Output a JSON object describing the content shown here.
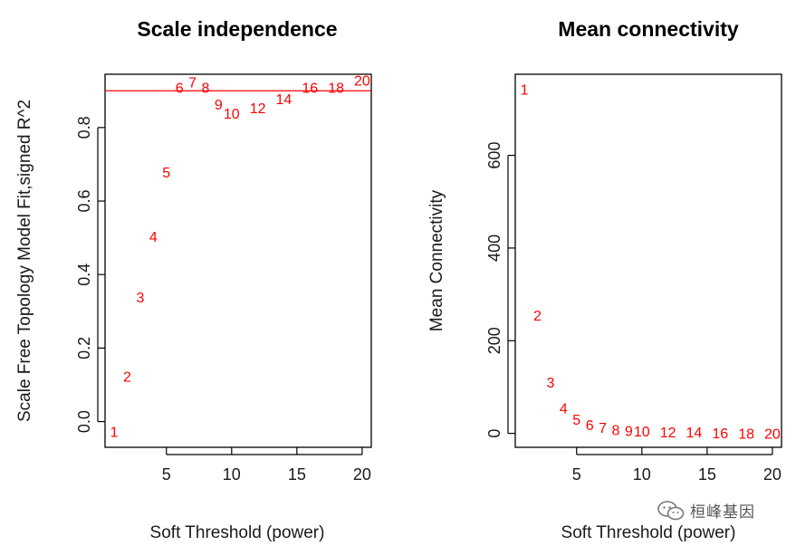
{
  "chart_data": [
    {
      "type": "scatter",
      "title": "Scale independence",
      "xlabel": "Soft Threshold (power)",
      "ylabel": "Scale Free Topology Model Fit,signed R^2",
      "xlim": [
        0.3,
        20.7
      ],
      "ylim": [
        -0.07,
        0.945
      ],
      "xticks": [
        5,
        10,
        15,
        20
      ],
      "yticks": [
        0.0,
        0.2,
        0.4,
        0.6,
        0.8
      ],
      "ytick_labels": [
        "0.0",
        "0.2",
        "0.4",
        "0.6",
        "0.8"
      ],
      "points": [
        {
          "x": 1,
          "y": -0.03,
          "label": "1"
        },
        {
          "x": 2,
          "y": 0.12,
          "label": "2"
        },
        {
          "x": 3,
          "y": 0.335,
          "label": "3"
        },
        {
          "x": 4,
          "y": 0.5,
          "label": "4"
        },
        {
          "x": 5,
          "y": 0.675,
          "label": "5"
        },
        {
          "x": 6,
          "y": 0.905,
          "label": "6"
        },
        {
          "x": 7,
          "y": 0.92,
          "label": "7"
        },
        {
          "x": 8,
          "y": 0.905,
          "label": "8"
        },
        {
          "x": 9,
          "y": 0.86,
          "label": "9"
        },
        {
          "x": 10,
          "y": 0.835,
          "label": "10"
        },
        {
          "x": 12,
          "y": 0.85,
          "label": "12"
        },
        {
          "x": 14,
          "y": 0.875,
          "label": "14"
        },
        {
          "x": 16,
          "y": 0.905,
          "label": "16"
        },
        {
          "x": 18,
          "y": 0.905,
          "label": "18"
        },
        {
          "x": 20,
          "y": 0.925,
          "label": "20"
        }
      ],
      "hline": 0.9,
      "point_color": "#ff0000",
      "hline_color": "#ff0000"
    },
    {
      "type": "scatter",
      "title": "Mean connectivity",
      "xlabel": "Soft Threshold (power)",
      "ylabel": "Mean Connectivity",
      "xlim": [
        0.3,
        20.7
      ],
      "ylim": [
        -30,
        775
      ],
      "xticks": [
        5,
        10,
        15,
        20
      ],
      "yticks": [
        0,
        200,
        400,
        600
      ],
      "ytick_labels": [
        "0",
        "200",
        "400",
        "600"
      ],
      "points": [
        {
          "x": 1,
          "y": 740,
          "label": "1"
        },
        {
          "x": 2,
          "y": 252,
          "label": "2"
        },
        {
          "x": 3,
          "y": 108,
          "label": "3"
        },
        {
          "x": 4,
          "y": 52,
          "label": "4"
        },
        {
          "x": 5,
          "y": 28,
          "label": "5"
        },
        {
          "x": 6,
          "y": 16,
          "label": "6"
        },
        {
          "x": 7,
          "y": 10,
          "label": "7"
        },
        {
          "x": 8,
          "y": 5,
          "label": "8"
        },
        {
          "x": 9,
          "y": 3,
          "label": "9"
        },
        {
          "x": 10,
          "y": 2,
          "label": "10"
        },
        {
          "x": 12,
          "y": 0,
          "label": "12"
        },
        {
          "x": 14,
          "y": 0,
          "label": "14"
        },
        {
          "x": 16,
          "y": -2,
          "label": "16"
        },
        {
          "x": 18,
          "y": -3,
          "label": "18"
        },
        {
          "x": 20,
          "y": -3,
          "label": "20"
        }
      ],
      "point_color": "#ff0000"
    }
  ],
  "watermark": {
    "text": "桓峰基因",
    "icon": "wechat-icon"
  }
}
